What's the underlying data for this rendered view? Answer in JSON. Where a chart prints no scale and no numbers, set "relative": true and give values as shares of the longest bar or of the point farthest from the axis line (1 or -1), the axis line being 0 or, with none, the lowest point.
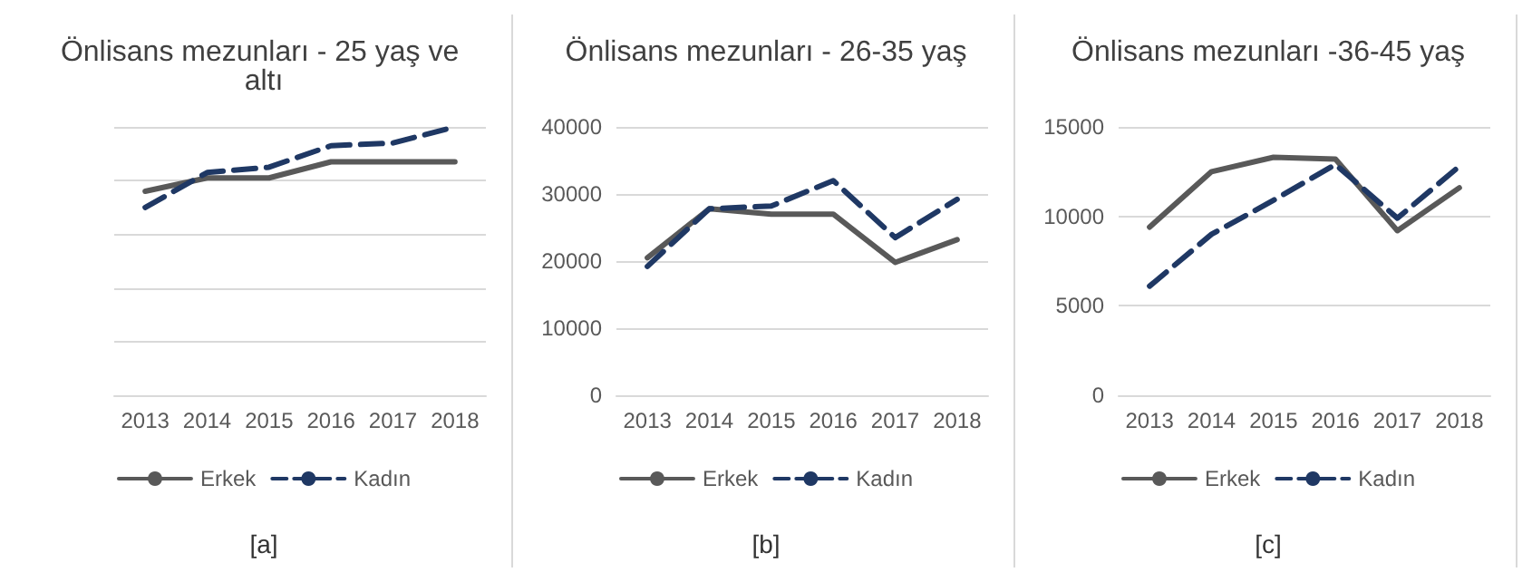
{
  "chart_data": [
    {
      "type": "line",
      "title": "Önlisans mezunları - 25 yaş ve altı",
      "categories": [
        "2013",
        "2014",
        "2015",
        "2016",
        "2017",
        "2018"
      ],
      "relative": true,
      "grid": "y",
      "legend": "bottom",
      "marker": "none",
      "annotations": [
        "[a]"
      ],
      "series": [
        {
          "name": "Erkek",
          "color": "#595959",
          "line_style": "solid",
          "values": [
            0.76,
            0.81,
            0.81,
            0.87,
            0.87,
            0.87
          ]
        },
        {
          "name": "Kadın",
          "color": "#1f3864",
          "line_style": "dashed",
          "values": [
            0.7,
            0.83,
            0.85,
            0.93,
            0.94,
            1
          ]
        }
      ]
    },
    {
      "type": "line",
      "title": "Önlisans mezunları - 26-35 yaş",
      "categories": [
        "2013",
        "2014",
        "2015",
        "2016",
        "2017",
        "2018"
      ],
      "ylim": [
        0,
        40000
      ],
      "yticks": [
        0,
        10000,
        20000,
        30000,
        40000
      ],
      "grid": "y",
      "legend": "bottom",
      "marker": "none",
      "annotations": [
        "[b]"
      ],
      "series": [
        {
          "name": "Erkek",
          "color": "#595959",
          "line_style": "solid",
          "values": [
            20500,
            27800,
            27000,
            27000,
            19800,
            23200
          ]
        },
        {
          "name": "Kadın",
          "color": "#1f3864",
          "line_style": "dashed",
          "values": [
            19200,
            27800,
            28200,
            32000,
            23500,
            29200
          ]
        }
      ]
    },
    {
      "type": "line",
      "title": "Önlisans mezunları -36-45 yaş",
      "categories": [
        "2013",
        "2014",
        "2015",
        "2016",
        "2017",
        "2018"
      ],
      "ylim": [
        0,
        15000
      ],
      "yticks": [
        0,
        5000,
        10000,
        15000
      ],
      "grid": "y",
      "legend": "bottom",
      "marker": "none",
      "annotations": [
        "[c]"
      ],
      "series": [
        {
          "name": "Erkek",
          "color": "#595959",
          "line_style": "solid",
          "values": [
            9400,
            12500,
            13300,
            13200,
            9200,
            11600
          ]
        },
        {
          "name": "Kadın",
          "color": "#1f3864",
          "line_style": "dashed",
          "values": [
            6100,
            9000,
            10900,
            12900,
            9900,
            12800
          ]
        }
      ]
    }
  ]
}
